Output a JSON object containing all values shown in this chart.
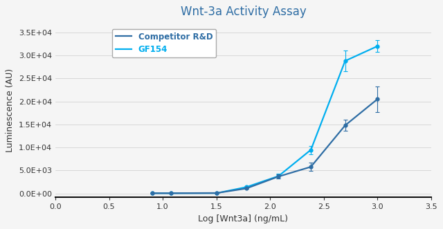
{
  "title": "Wnt-3a Activity Assay",
  "title_color": "#2E6DA4",
  "xlabel": "Log [Wnt3a] (ng/mL)",
  "ylabel": "Luminescence (AU)",
  "xlim": [
    0,
    3.5
  ],
  "ylim": [
    -800,
    37000
  ],
  "xticks": [
    0,
    0.5,
    1.0,
    1.5,
    2.0,
    2.5,
    3.0,
    3.5
  ],
  "yticks": [
    0,
    5000,
    10000,
    15000,
    20000,
    25000,
    30000,
    35000
  ],
  "competitor_color": "#2E6DA4",
  "gf154_color": "#00AEEF",
  "competitor_label": "Competitor R&D",
  "gf154_label": "GF154",
  "competitor_x": [
    0.903,
    1.079,
    1.505,
    1.778,
    2.079,
    2.38,
    2.699,
    3.0
  ],
  "competitor_y": [
    80,
    80,
    120,
    1100,
    3700,
    5800,
    14800,
    20500
  ],
  "competitor_yerr": [
    40,
    40,
    60,
    150,
    500,
    900,
    1200,
    2800
  ],
  "gf154_x": [
    0.903,
    1.079,
    1.505,
    1.778,
    2.079,
    2.38,
    2.699,
    3.0
  ],
  "gf154_y": [
    80,
    80,
    100,
    1400,
    3800,
    9500,
    28800,
    32000
  ],
  "gf154_yerr": [
    40,
    40,
    60,
    180,
    500,
    900,
    2200,
    1300
  ],
  "legend_fontsize": 8.5,
  "axis_label_fontsize": 9,
  "tick_fontsize": 8,
  "title_fontsize": 12,
  "plot_bg_color": "#F5F5F5",
  "fig_bg_color": "#F5F5F5"
}
